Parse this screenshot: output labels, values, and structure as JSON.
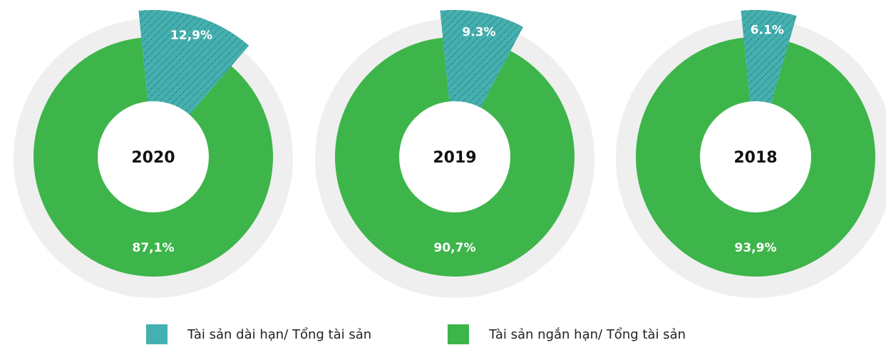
{
  "chart_data": [
    {
      "type": "donut",
      "title": "2020",
      "categories": [
        "Tài sản dài hạn/ Tổng tài sản",
        "Tài sản ngắn hạn/ Tổng tài sản"
      ],
      "values": [
        12.9,
        87.1
      ],
      "value_labels": [
        "12,9%",
        "87,1%"
      ],
      "colors": [
        "#45b0b0",
        "#3db54a"
      ]
    },
    {
      "type": "donut",
      "title": "2019",
      "categories": [
        "Tài sản dài hạn/ Tổng tài sản",
        "Tài sản ngắn hạn/ Tổng tài sản"
      ],
      "values": [
        9.3,
        90.7
      ],
      "value_labels": [
        "9.3%",
        "90,7%"
      ],
      "colors": [
        "#45b0b0",
        "#3db54a"
      ]
    },
    {
      "type": "donut",
      "title": "2018",
      "categories": [
        "Tài sản dài hạn/ Tổng tài sản",
        "Tài sản ngắn hạn/ Tổng tài sản"
      ],
      "values": [
        6.1,
        93.9
      ],
      "value_labels": [
        "6.1%",
        "93,9%"
      ],
      "colors": [
        "#45b0b0",
        "#3db54a"
      ]
    }
  ]
}
